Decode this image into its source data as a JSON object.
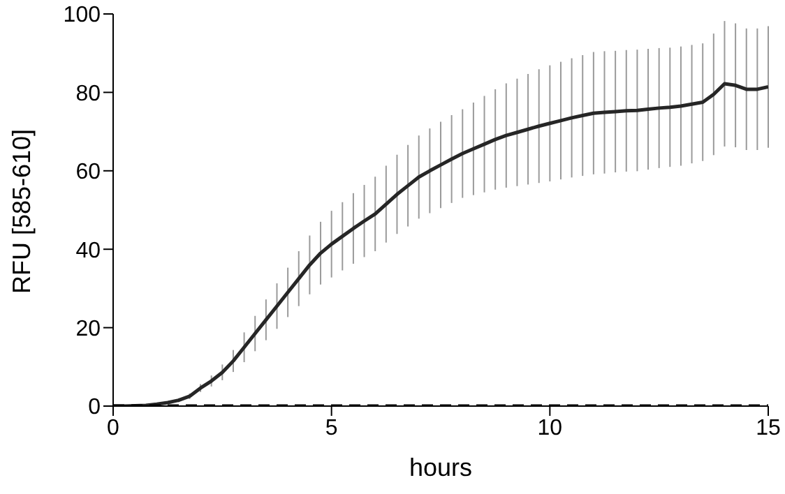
{
  "chart_data": {
    "type": "line",
    "xlabel": "hours",
    "ylabel": "RFU [585-610]",
    "xlim": [
      0,
      15
    ],
    "xticks": [
      0,
      5,
      10,
      15
    ],
    "ylim": [
      0,
      100
    ],
    "yticks": [
      0,
      20,
      40,
      60,
      80,
      100
    ],
    "grid": false,
    "marker": "none",
    "x": [
      0,
      0.25,
      0.5,
      0.75,
      1,
      1.25,
      1.5,
      1.75,
      2,
      2.25,
      2.5,
      2.75,
      3,
      3.25,
      3.5,
      3.75,
      4,
      4.25,
      4.5,
      4.75,
      5,
      5.25,
      5.5,
      5.75,
      6,
      6.25,
      6.5,
      6.75,
      7,
      7.25,
      7.5,
      7.75,
      8,
      8.25,
      8.5,
      8.75,
      9,
      9.25,
      9.5,
      9.75,
      10,
      10.25,
      10.5,
      10.75,
      11,
      11.25,
      11.5,
      11.75,
      12,
      12.25,
      12.5,
      12.75,
      13,
      13.25,
      13.5,
      13.75,
      14,
      14.25,
      14.5,
      14.75,
      15
    ],
    "series": [
      {
        "color": "#262626",
        "line_style": "solid",
        "values": [
          0,
          0,
          0.1,
          0.2,
          0.5,
          0.9,
          1.5,
          2.5,
          4.6,
          6.4,
          8.6,
          11.5,
          15,
          18.5,
          22,
          25.5,
          29,
          32.5,
          36,
          39,
          41.3,
          43.3,
          45.3,
          47.2,
          49,
          51.5,
          54,
          56.2,
          58.4,
          60,
          61.5,
          63,
          64.4,
          65.6,
          66.8,
          68,
          69,
          69.8,
          70.6,
          71.4,
          72.1,
          72.8,
          73.5,
          74.1,
          74.7,
          74.9,
          75.1,
          75.3,
          75.4,
          75.7,
          76,
          76.2,
          76.5,
          77,
          77.5,
          79.5,
          82.2,
          81.8,
          80.8,
          80.8,
          81.4
        ],
        "errors": [
          null,
          null,
          null,
          null,
          null,
          null,
          0.5,
          0.7,
          1,
          1.4,
          2,
          2.8,
          3.8,
          4.5,
          5.2,
          5.8,
          6.3,
          7,
          7.5,
          8,
          8.5,
          8.7,
          9,
          9.2,
          9.5,
          9.8,
          10.1,
          10.4,
          10.6,
          10.8,
          11,
          11.2,
          11.3,
          11.8,
          12.3,
          12.8,
          13.3,
          13.7,
          14.1,
          14.5,
          14.8,
          15,
          15.2,
          15.4,
          15.6,
          15.6,
          15.5,
          15.5,
          15.5,
          15.4,
          15.3,
          15.2,
          15.2,
          15.1,
          15,
          15.5,
          16,
          15.8,
          15.5,
          15.5,
          15.5
        ]
      },
      {
        "color": "#000000",
        "line_style": "dashed",
        "x": [
          0,
          15
        ],
        "values": [
          0,
          0
        ]
      }
    ]
  }
}
